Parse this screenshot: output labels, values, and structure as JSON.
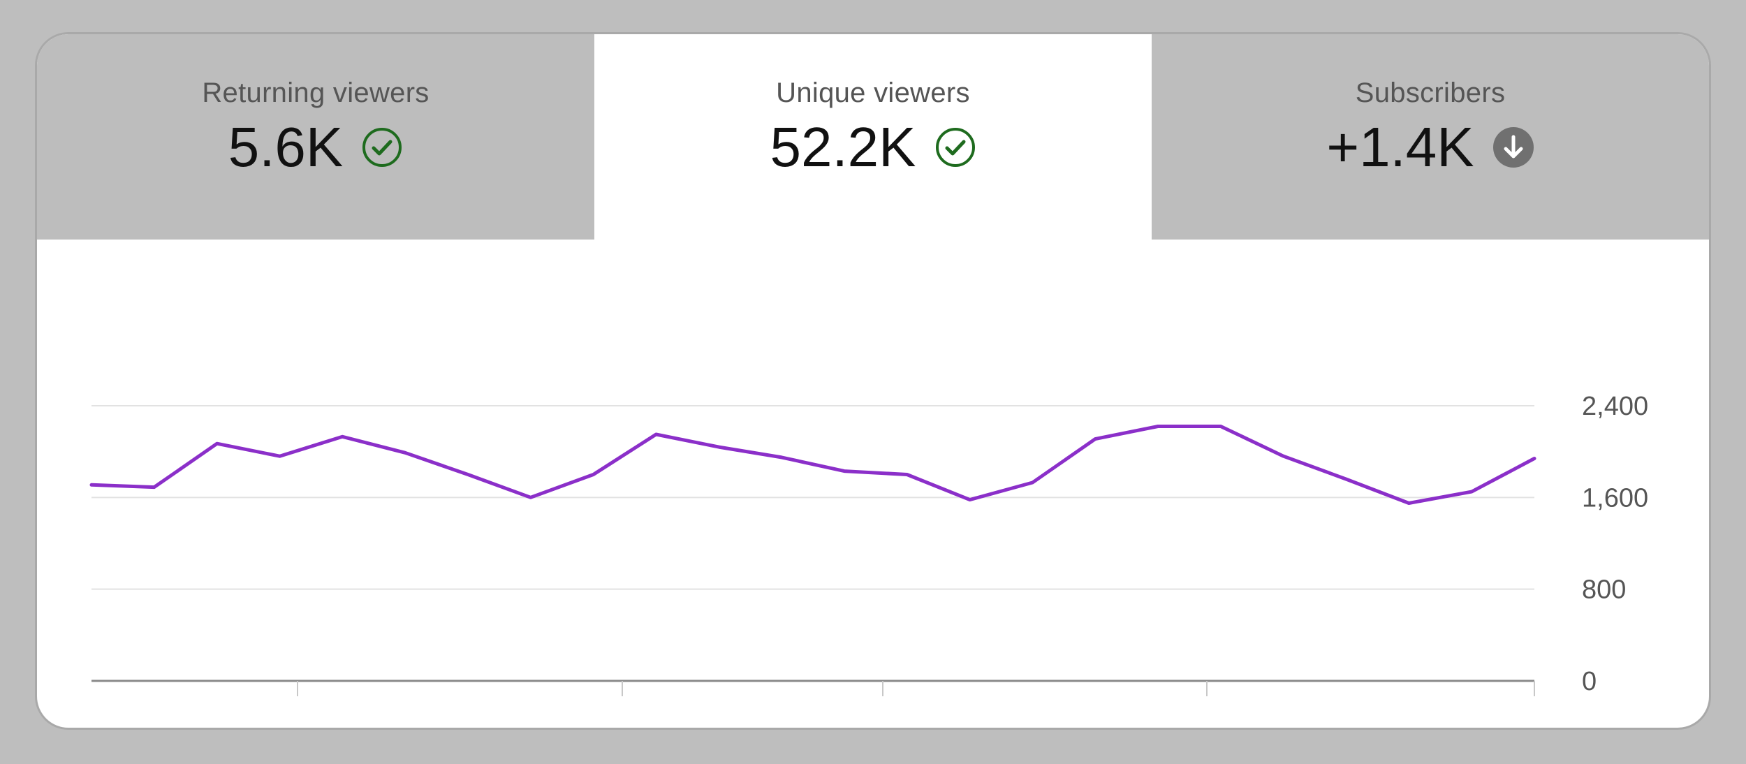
{
  "tabs": [
    {
      "label": "Returning viewers",
      "value": "5.6K",
      "status_icon": "check-circle-icon",
      "active": false
    },
    {
      "label": "Unique viewers",
      "value": "52.2K",
      "status_icon": "check-circle-icon",
      "active": true
    },
    {
      "label": "Subscribers",
      "value": "+1.4K",
      "status_icon": "arrow-down-circle-icon",
      "active": false
    }
  ],
  "colors": {
    "line": "#8b2fc9",
    "check": "#1e6b1e",
    "down_badge": "#707070"
  },
  "chart_data": {
    "type": "line",
    "y_ticks": [
      "2,400",
      "1,600",
      "800",
      "0"
    ],
    "ylim": [
      0,
      2400
    ],
    "grid": true,
    "x_axis_ticks": 6,
    "series": [
      {
        "values": [
          1710,
          1690,
          2070,
          1960,
          2130,
          1990,
          1800,
          1600,
          1800,
          2150,
          2040,
          1950,
          1830,
          1800,
          1580,
          1730,
          2110,
          2220,
          2220,
          1960,
          1760,
          1550,
          1650,
          1940
        ]
      }
    ]
  }
}
